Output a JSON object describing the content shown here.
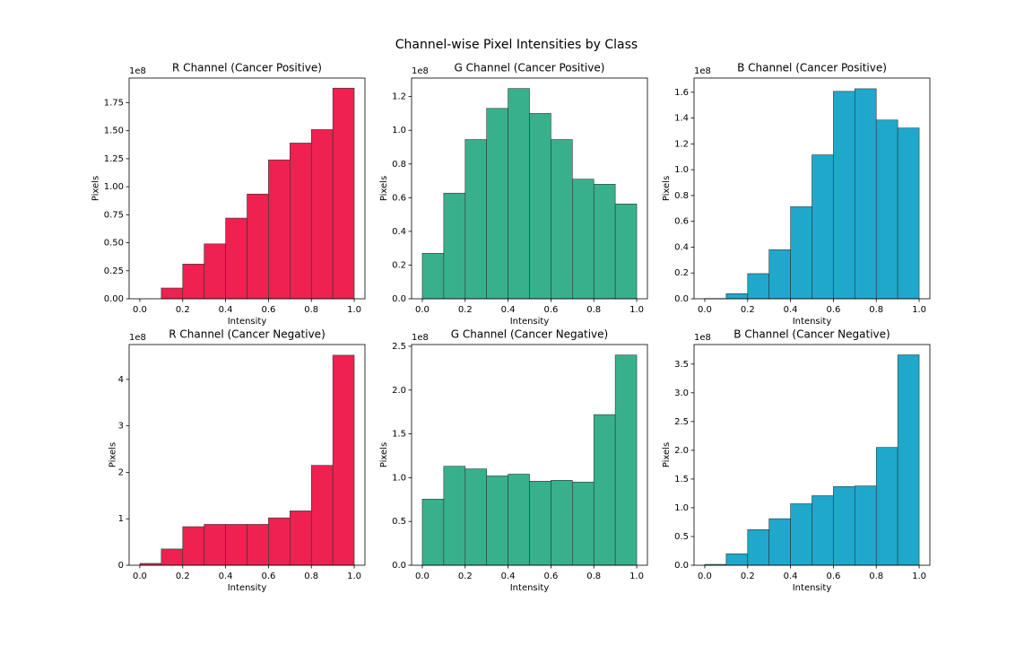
{
  "title": "Channel-wise Pixel Intensities by Class",
  "chart_data": [
    {
      "type": "histogram",
      "title": "R Channel (Cancer Positive)",
      "xlabel": "Intensity",
      "ylabel": "Pixels",
      "offset_label": "1e8",
      "color": "#ee2150",
      "bins": [
        0,
        0.1,
        0.2,
        0.3,
        0.4,
        0.5,
        0.6,
        0.7,
        0.8,
        0.9,
        1
      ],
      "values": [
        0,
        0.096,
        0.31,
        0.49,
        0.72,
        0.935,
        1.24,
        1.39,
        1.51,
        1.88
      ],
      "xlim": [
        -0.05,
        1.05
      ],
      "ylim": [
        0,
        1.97
      ],
      "xticks": [
        {
          "value": 0,
          "label": "0.0"
        },
        0.2,
        0.4,
        0.6,
        0.8,
        {
          "value": 1,
          "label": "1.0"
        }
      ],
      "yticks": [
        {
          "value": 0,
          "label": "0.00"
        },
        0.25,
        {
          "value": 0.5,
          "label": "0.50"
        },
        0.75,
        {
          "value": 1,
          "label": "1.00"
        },
        1.25,
        {
          "value": 1.5,
          "label": "1.50"
        },
        1.75
      ]
    },
    {
      "type": "histogram",
      "title": "G Channel (Cancer Positive)",
      "xlabel": "Intensity",
      "ylabel": "Pixels",
      "offset_label": "1e8",
      "color": "#39b08c",
      "bins": [
        0,
        0.1,
        0.2,
        0.3,
        0.4,
        0.5,
        0.6,
        0.7,
        0.8,
        0.9,
        1
      ],
      "values": [
        0.27,
        0.627,
        0.945,
        1.13,
        1.248,
        1.1,
        0.945,
        0.71,
        0.68,
        0.563
      ],
      "xlim": [
        -0.05,
        1.05
      ],
      "ylim": [
        0,
        1.31
      ],
      "xticks": [
        {
          "value": 0,
          "label": "0.0"
        },
        0.2,
        0.4,
        0.6,
        0.8,
        {
          "value": 1,
          "label": "1.0"
        }
      ],
      "yticks": [
        {
          "value": 0,
          "label": "0.0"
        },
        0.2,
        0.4,
        0.6,
        0.8,
        {
          "value": 1,
          "label": "1.0"
        },
        1.2
      ]
    },
    {
      "type": "histogram",
      "title": "B Channel (Cancer Positive)",
      "xlabel": "Intensity",
      "ylabel": "Pixels",
      "offset_label": "1e8",
      "color": "#1fa8cc",
      "bins": [
        0,
        0.1,
        0.2,
        0.3,
        0.4,
        0.5,
        0.6,
        0.7,
        0.8,
        0.9,
        1
      ],
      "values": [
        0.002,
        0.04,
        0.195,
        0.38,
        0.713,
        1.115,
        1.607,
        1.627,
        1.385,
        1.323
      ],
      "xlim": [
        -0.05,
        1.05
      ],
      "ylim": [
        0,
        1.71
      ],
      "xticks": [
        {
          "value": 0,
          "label": "0.0"
        },
        0.2,
        0.4,
        0.6,
        0.8,
        {
          "value": 1,
          "label": "1.0"
        }
      ],
      "yticks": [
        {
          "value": 0,
          "label": "0.0"
        },
        0.2,
        0.4,
        0.6,
        0.8,
        {
          "value": 1,
          "label": "1.0"
        },
        1.2,
        1.4,
        1.6
      ]
    },
    {
      "type": "histogram",
      "title": "R Channel (Cancer Negative)",
      "xlabel": "Intensity",
      "ylabel": "Pixels",
      "offset_label": "1e8",
      "color": "#ee2150",
      "bins": [
        0,
        0.1,
        0.2,
        0.3,
        0.4,
        0.5,
        0.6,
        0.7,
        0.8,
        0.9,
        1
      ],
      "values": [
        0.04,
        0.35,
        0.83,
        0.88,
        0.88,
        0.88,
        1.02,
        1.17,
        2.15,
        4.52
      ],
      "xlim": [
        -0.05,
        1.05
      ],
      "ylim": [
        0,
        4.75
      ],
      "xticks": [
        {
          "value": 0,
          "label": "0.0"
        },
        0.2,
        0.4,
        0.6,
        0.8,
        {
          "value": 1,
          "label": "1.0"
        }
      ],
      "yticks": [
        0,
        1,
        2,
        3,
        4
      ]
    },
    {
      "type": "histogram",
      "title": "G Channel (Cancer Negative)",
      "xlabel": "Intensity",
      "ylabel": "Pixels",
      "offset_label": "1e8",
      "color": "#39b08c",
      "bins": [
        0,
        0.1,
        0.2,
        0.3,
        0.4,
        0.5,
        0.6,
        0.7,
        0.8,
        0.9,
        1
      ],
      "values": [
        0.755,
        1.13,
        1.1,
        1.02,
        1.04,
        0.96,
        0.97,
        0.95,
        1.72,
        2.4
      ],
      "xlim": [
        -0.05,
        1.05
      ],
      "ylim": [
        0,
        2.52
      ],
      "xticks": [
        {
          "value": 0,
          "label": "0.0"
        },
        0.2,
        0.4,
        0.6,
        0.8,
        {
          "value": 1,
          "label": "1.0"
        }
      ],
      "yticks": [
        {
          "value": 0,
          "label": "0.0"
        },
        0.5,
        {
          "value": 1,
          "label": "1.0"
        },
        1.5,
        {
          "value": 2,
          "label": "2.0"
        },
        2.5
      ]
    },
    {
      "type": "histogram",
      "title": "B Channel (Cancer Negative)",
      "xlabel": "Intensity",
      "ylabel": "Pixels",
      "offset_label": "1e8",
      "color": "#1fa8cc",
      "bins": [
        0,
        0.1,
        0.2,
        0.3,
        0.4,
        0.5,
        0.6,
        0.7,
        0.8,
        0.9,
        1
      ],
      "values": [
        0.015,
        0.2,
        0.62,
        0.81,
        1.07,
        1.21,
        1.37,
        1.38,
        2.05,
        3.66
      ],
      "xlim": [
        -0.05,
        1.05
      ],
      "ylim": [
        0,
        3.84
      ],
      "xticks": [
        {
          "value": 0,
          "label": "0.0"
        },
        0.2,
        0.4,
        0.6,
        0.8,
        {
          "value": 1,
          "label": "1.0"
        }
      ],
      "yticks": [
        {
          "value": 0,
          "label": "0.0"
        },
        0.5,
        {
          "value": 1,
          "label": "1.0"
        },
        1.5,
        {
          "value": 2,
          "label": "2.0"
        },
        2.5,
        {
          "value": 3,
          "label": "3.0"
        },
        3.5
      ]
    }
  ]
}
